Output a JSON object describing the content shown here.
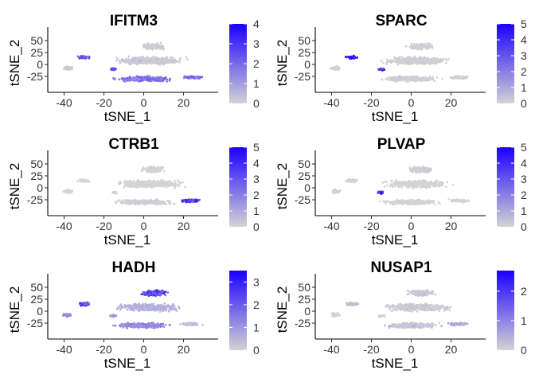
{
  "chart_data": [
    {
      "type": "scatter",
      "title": "IFITM3",
      "xlabel": "tSNE_1",
      "ylabel": "tSNE_2",
      "xlim": [
        -45,
        35
      ],
      "ylim": [
        -45,
        65
      ],
      "xticks": [
        -40,
        -20,
        0,
        20
      ],
      "yticks": [
        -25,
        0,
        25,
        50
      ],
      "legend": {
        "min": 0,
        "max": 4,
        "ticks": [
          0,
          1,
          2,
          3,
          4
        ],
        "low_color": "#d3d3d3",
        "high_color": "#1c00ff"
      },
      "groups": [
        {
          "name": "left-small",
          "cx": -30,
          "cy": 15,
          "rx": 4,
          "ry": 4,
          "level": 2.4
        },
        {
          "name": "left-lower",
          "cx": -15,
          "cy": -10,
          "rx": 2,
          "ry": 3,
          "level": 2.8
        },
        {
          "name": "center-bottom",
          "cx": 0,
          "cy": -30,
          "rx": 17,
          "ry": 7,
          "level": 2.0
        },
        {
          "name": "right-bottom",
          "cx": 24,
          "cy": -27,
          "rx": 7,
          "ry": 4,
          "level": 2.2
        },
        {
          "name": "far-left",
          "cx": -38,
          "cy": -8,
          "rx": 3,
          "ry": 5,
          "level": 0.1
        },
        {
          "name": "top-center",
          "cx": 5,
          "cy": 38,
          "rx": 8,
          "ry": 8,
          "level": 0.1
        },
        {
          "name": "mid-center",
          "cx": 3,
          "cy": 8,
          "rx": 20,
          "ry": 10,
          "level": 0.2
        }
      ]
    },
    {
      "type": "scatter",
      "title": "SPARC",
      "xlabel": "tSNE_1",
      "ylabel": "tSNE_2",
      "xlim": [
        -45,
        35
      ],
      "ylim": [
        -45,
        65
      ],
      "xticks": [
        -40,
        -20,
        0,
        20
      ],
      "yticks": [
        -25,
        0,
        25,
        50
      ],
      "legend": {
        "min": 0,
        "max": 5,
        "ticks": [
          0,
          1,
          2,
          3,
          4,
          5
        ],
        "low_color": "#d3d3d3",
        "high_color": "#1c00ff"
      },
      "groups": [
        {
          "name": "left-small",
          "cx": -30,
          "cy": 15,
          "rx": 4,
          "ry": 4,
          "level": 4.5
        },
        {
          "name": "left-lower",
          "cx": -15,
          "cy": -10,
          "rx": 2,
          "ry": 3,
          "level": 4.0
        },
        {
          "name": "center-bottom",
          "cx": 0,
          "cy": -30,
          "rx": 17,
          "ry": 7,
          "level": 0.1
        },
        {
          "name": "right-bottom",
          "cx": 24,
          "cy": -27,
          "rx": 7,
          "ry": 4,
          "level": 0.1
        },
        {
          "name": "far-left",
          "cx": -38,
          "cy": -8,
          "rx": 3,
          "ry": 5,
          "level": 0.1
        },
        {
          "name": "top-center",
          "cx": 5,
          "cy": 38,
          "rx": 8,
          "ry": 8,
          "level": 0.1
        },
        {
          "name": "mid-center",
          "cx": 3,
          "cy": 8,
          "rx": 20,
          "ry": 10,
          "level": 0.1
        }
      ]
    },
    {
      "type": "scatter",
      "title": "CTRB1",
      "xlabel": "tSNE_1",
      "ylabel": "tSNE_2",
      "xlim": [
        -45,
        35
      ],
      "ylim": [
        -45,
        65
      ],
      "xticks": [
        -40,
        -20,
        0,
        20
      ],
      "yticks": [
        -25,
        0,
        25,
        50
      ],
      "legend": {
        "min": 0,
        "max": 5,
        "ticks": [
          0,
          1,
          2,
          3,
          4,
          5
        ],
        "low_color": "#d3d3d3",
        "high_color": "#1c00ff"
      },
      "groups": [
        {
          "name": "left-small",
          "cx": -30,
          "cy": 15,
          "rx": 4,
          "ry": 4,
          "level": 0
        },
        {
          "name": "left-lower",
          "cx": -15,
          "cy": -10,
          "rx": 2,
          "ry": 3,
          "level": 0
        },
        {
          "name": "center-bottom",
          "cx": 0,
          "cy": -30,
          "rx": 17,
          "ry": 7,
          "level": 0.1
        },
        {
          "name": "right-bottom",
          "cx": 24,
          "cy": -27,
          "rx": 7,
          "ry": 4,
          "level": 4.0
        },
        {
          "name": "far-left",
          "cx": -38,
          "cy": -8,
          "rx": 3,
          "ry": 5,
          "level": 0
        },
        {
          "name": "top-center",
          "cx": 5,
          "cy": 38,
          "rx": 8,
          "ry": 8,
          "level": 0
        },
        {
          "name": "mid-center",
          "cx": 3,
          "cy": 8,
          "rx": 20,
          "ry": 10,
          "level": 0
        }
      ]
    },
    {
      "type": "scatter",
      "title": "PLVAP",
      "xlabel": "tSNE_1",
      "ylabel": "tSNE_2",
      "xlim": [
        -45,
        35
      ],
      "ylim": [
        -45,
        65
      ],
      "xticks": [
        -40,
        -20,
        0,
        20
      ],
      "yticks": [
        -25,
        0,
        25,
        50
      ],
      "legend": {
        "min": 0,
        "max": 5,
        "ticks": [
          0,
          1,
          2,
          3,
          4,
          5
        ],
        "low_color": "#d3d3d3",
        "high_color": "#1c00ff"
      },
      "groups": [
        {
          "name": "left-small",
          "cx": -30,
          "cy": 15,
          "rx": 4,
          "ry": 4,
          "level": 0
        },
        {
          "name": "left-lower",
          "cx": -15,
          "cy": -10,
          "rx": 2,
          "ry": 3,
          "level": 4.2
        },
        {
          "name": "center-bottom",
          "cx": 0,
          "cy": -30,
          "rx": 17,
          "ry": 7,
          "level": 0
        },
        {
          "name": "right-bottom",
          "cx": 24,
          "cy": -27,
          "rx": 7,
          "ry": 4,
          "level": 0
        },
        {
          "name": "far-left",
          "cx": -38,
          "cy": -8,
          "rx": 3,
          "ry": 5,
          "level": 0
        },
        {
          "name": "top-center",
          "cx": 5,
          "cy": 38,
          "rx": 8,
          "ry": 8,
          "level": 0.1
        },
        {
          "name": "mid-center",
          "cx": 3,
          "cy": 8,
          "rx": 20,
          "ry": 10,
          "level": 0
        }
      ]
    },
    {
      "type": "scatter",
      "title": "HADH",
      "xlabel": "tSNE_1",
      "ylabel": "tSNE_2",
      "xlim": [
        -45,
        35
      ],
      "ylim": [
        -45,
        65
      ],
      "xticks": [
        -40,
        -20,
        0,
        20
      ],
      "yticks": [
        -25,
        0,
        25,
        50
      ],
      "legend": {
        "min": 0,
        "max": 3.5,
        "ticks": [
          0,
          1,
          2,
          3
        ],
        "low_color": "#d3d3d3",
        "high_color": "#1c00ff"
      },
      "groups": [
        {
          "name": "left-small",
          "cx": -30,
          "cy": 15,
          "rx": 4,
          "ry": 4,
          "level": 2.5
        },
        {
          "name": "left-lower",
          "cx": -15,
          "cy": -10,
          "rx": 2,
          "ry": 3,
          "level": 1.0
        },
        {
          "name": "center-bottom",
          "cx": 0,
          "cy": -30,
          "rx": 17,
          "ry": 7,
          "level": 1.3
        },
        {
          "name": "right-bottom",
          "cx": 24,
          "cy": -27,
          "rx": 7,
          "ry": 4,
          "level": 0.4
        },
        {
          "name": "far-left",
          "cx": -38,
          "cy": -8,
          "rx": 3,
          "ry": 5,
          "level": 1.2
        },
        {
          "name": "top-center",
          "cx": 5,
          "cy": 38,
          "rx": 8,
          "ry": 8,
          "level": 2.7
        },
        {
          "name": "mid-center",
          "cx": 3,
          "cy": 8,
          "rx": 20,
          "ry": 10,
          "level": 0.6
        }
      ]
    },
    {
      "type": "scatter",
      "title": "NUSAP1",
      "xlabel": "tSNE_1",
      "ylabel": "tSNE_2",
      "xlim": [
        -45,
        35
      ],
      "ylim": [
        -45,
        65
      ],
      "xticks": [
        -40,
        -20,
        0,
        20
      ],
      "yticks": [
        -25,
        0,
        25,
        50
      ],
      "legend": {
        "min": 0,
        "max": 2.7,
        "ticks": [
          0,
          1,
          2
        ],
        "low_color": "#d3d3d3",
        "high_color": "#1c00ff"
      },
      "groups": [
        {
          "name": "left-small",
          "cx": -30,
          "cy": 15,
          "rx": 4,
          "ry": 4,
          "level": 0.3
        },
        {
          "name": "left-lower",
          "cx": -15,
          "cy": -10,
          "rx": 2,
          "ry": 3,
          "level": 0
        },
        {
          "name": "center-bottom",
          "cx": 0,
          "cy": -30,
          "rx": 17,
          "ry": 7,
          "level": 0.2
        },
        {
          "name": "right-bottom",
          "cx": 24,
          "cy": -27,
          "rx": 7,
          "ry": 4,
          "level": 0.6
        },
        {
          "name": "far-left",
          "cx": -38,
          "cy": -8,
          "rx": 3,
          "ry": 5,
          "level": 0
        },
        {
          "name": "top-center",
          "cx": 5,
          "cy": 38,
          "rx": 8,
          "ry": 8,
          "level": 0.2
        },
        {
          "name": "mid-center",
          "cx": 3,
          "cy": 8,
          "rx": 20,
          "ry": 10,
          "level": 0.1
        }
      ]
    }
  ]
}
